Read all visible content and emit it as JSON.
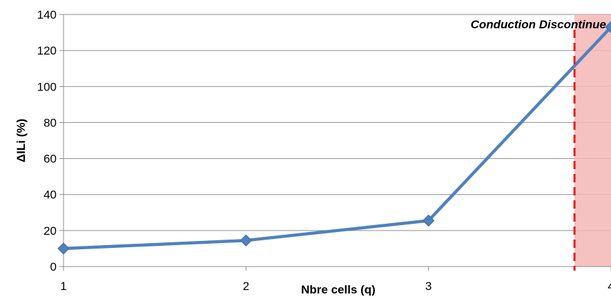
{
  "chart_data": {
    "type": "line",
    "title": "",
    "xlabel": "Nbre cells (q)",
    "ylabel": "ΔILi (%)",
    "x": [
      1,
      2,
      3,
      4
    ],
    "x_tick_labels": [
      "1",
      "2",
      "3",
      "4"
    ],
    "y_tick_labels": [
      "0",
      "20",
      "40",
      "60",
      "80",
      "100",
      "120",
      "140"
    ],
    "xlim": [
      1,
      4
    ],
    "ylim": [
      0,
      140
    ],
    "grid": "horizontal",
    "legend": "none",
    "series": [
      {
        "values": [
          10,
          14.5,
          25.5,
          133
        ],
        "color": "#4f81bd",
        "marker": "diamond"
      }
    ],
    "annotation": {
      "text": "Conduction Discontinue",
      "threshold_x": 3.8,
      "region_color": "#f4b6b6",
      "line_color": "#e02020"
    }
  }
}
